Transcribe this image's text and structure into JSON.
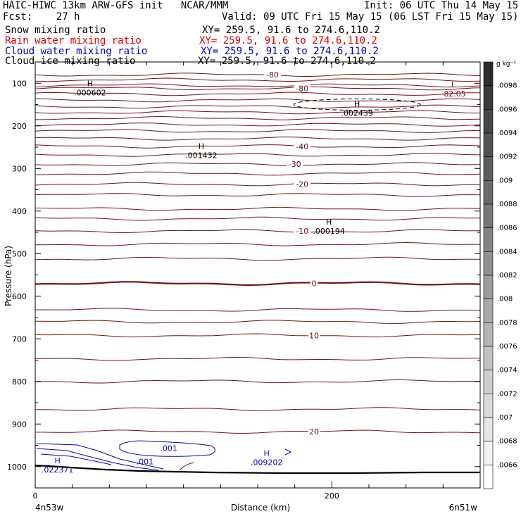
{
  "header": {
    "line1_left": "HAIC-HIWC 13km ARW-GFS init   NCAR/MMM",
    "line1_right": "Init: 06 UTC Thu 14 May 15",
    "line2_left": "Fcst:    27 h",
    "line2_right": "Valid: 09 UTC Fri 15 May 15 (06 LST Fri 15 May 15)"
  },
  "fields": [
    {
      "label": "Snow mixing ratio",
      "xy": "XY= 259.5, 91.6 to 274.6,110.2",
      "color": "#000000"
    },
    {
      "label": "Rain water mixing ratio",
      "xy": "XY= 259.5, 91.6 to 274.6,110.2",
      "color": "#e00000"
    },
    {
      "label": "Cloud water mixing ratio",
      "xy": "XY= 259.5, 91.6 to 274.6,110.2",
      "color": "#0000c8"
    },
    {
      "label": "Cloud ice mixing ratio",
      "xy": "XY= 259.5, 91.6 to 274.6,110.2",
      "color": "#000000"
    }
  ],
  "chart_data": {
    "type": "contour",
    "xlabel": "Distance (km)",
    "ylabel": "Pressure (hPa)",
    "xlim": [
      0,
      300
    ],
    "ylim": [
      1050,
      50
    ],
    "x_ticks": [
      0,
      200
    ],
    "x_minor_step": 25,
    "y_ticks": [
      100,
      200,
      300,
      400,
      500,
      600,
      700,
      800,
      900,
      1000
    ],
    "y_minor_step": 50,
    "x_endpoint_left": "4n53w",
    "x_endpoint_right": "6n51w",
    "colorbar": {
      "unit": "g kg⁻¹",
      "labels": [
        ".0098",
        ".0096",
        ".0094",
        ".0092",
        ".009",
        ".0088",
        ".0086",
        ".0084",
        ".0082",
        ".008",
        ".0078",
        ".0076",
        ".0074",
        ".0072",
        ".007",
        ".0068",
        ".0066"
      ]
    },
    "temperature_contours": {
      "color": "#7a1010",
      "levels": [
        {
          "p": 80,
          "label": "-80",
          "label_x": 160
        },
        {
          "p": 92
        },
        {
          "p": 105
        },
        {
          "p": 112,
          "label": "-80",
          "label_x": 180
        },
        {
          "p": 125
        },
        {
          "p": 140
        },
        {
          "p": 155
        },
        {
          "p": 168
        },
        {
          "p": 182
        },
        {
          "p": 197
        },
        {
          "p": 212
        },
        {
          "p": 230
        },
        {
          "p": 248,
          "label": "-40",
          "label_x": 180
        },
        {
          "p": 268
        },
        {
          "p": 290,
          "label": "-30",
          "label_x": 175
        },
        {
          "p": 312
        },
        {
          "p": 337,
          "label": "-20",
          "label_x": 180
        },
        {
          "p": 362
        },
        {
          "p": 395
        },
        {
          "p": 418
        },
        {
          "p": 447,
          "label": "-10",
          "label_x": 180
        },
        {
          "p": 478
        },
        {
          "p": 512
        },
        {
          "p": 570,
          "label": "0",
          "label_x": 188,
          "thick": true
        },
        {
          "p": 632
        },
        {
          "p": 660
        },
        {
          "p": 692,
          "label": "10",
          "label_x": 188
        },
        {
          "p": 747
        },
        {
          "p": 800
        },
        {
          "p": 865
        },
        {
          "p": 918,
          "label": "20",
          "label_x": 188
        }
      ]
    },
    "extrema": [
      {
        "type": "H",
        "value": ".000602",
        "x": 37,
        "p": 115,
        "color": "#000000"
      },
      {
        "type": "H",
        "value": ".002439",
        "x": 217,
        "p": 163,
        "color": "#000000"
      },
      {
        "type": "L",
        "value": "-82.05",
        "x": 282,
        "p": 118,
        "color": "#7a1010"
      },
      {
        "type": "H",
        "value": ".001432",
        "x": 112,
        "p": 262,
        "color": "#000000"
      },
      {
        "type": "H",
        "value": ".000194",
        "x": 198,
        "p": 440,
        "color": "#000000"
      },
      {
        "type": "H",
        "value": ".022371",
        "x": 15,
        "p": 1000,
        "color": "#0000c8"
      },
      {
        "type": "H",
        "value": ".009202",
        "x": 156,
        "p": 983,
        "color": "#0000c8"
      }
    ],
    "cloud_water_labels": [
      {
        "value": ".001",
        "x": 90,
        "p": 957
      },
      {
        "value": ".001",
        "x": 74,
        "p": 988
      }
    ]
  }
}
